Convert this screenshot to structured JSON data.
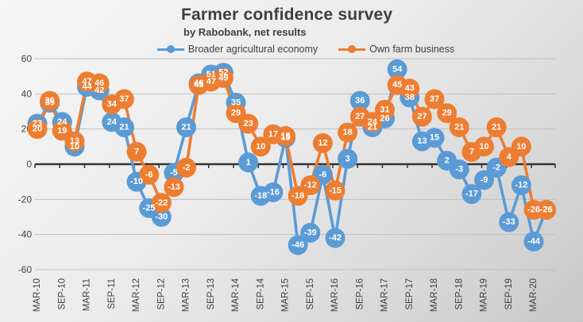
{
  "header": {
    "title": "Farmer confidence survey",
    "subtitle": "by Rabobank, net results"
  },
  "chart_data": {
    "type": "line",
    "title": "Farmer confidence survey",
    "subtitle": "by Rabobank, net results",
    "legend_position": "top",
    "grid": true,
    "ylim": [
      -60,
      60
    ],
    "yticks": [
      60,
      40,
      20,
      0,
      -20,
      -40,
      -60
    ],
    "x_labels": [
      "MAR-10",
      "SEP-10",
      "MAR-11",
      "SEP-11",
      "MAR-12",
      "SEP-12",
      "MAR-13",
      "SEP-13",
      "MAR-14",
      "SEP-14",
      "MAR-15",
      "SEP-15",
      "MAR-16",
      "SEP-16",
      "MAR-17",
      "SEP-17",
      "MAR-18",
      "SEP-18",
      "MAR-19",
      "SEP-19",
      "MAR-20"
    ],
    "points_per_axis_label": 2,
    "series": [
      {
        "name": "Broader agricultural economy",
        "color": "#5B9BD5",
        "values": [
          23,
          35,
          24,
          10,
          44,
          42,
          24,
          21,
          -10,
          -25,
          -30,
          -5,
          21,
          46,
          51,
          52,
          35,
          1,
          -18,
          -16,
          15,
          -46,
          -39,
          -6,
          -42,
          3,
          36,
          21,
          26,
          54,
          38,
          13,
          15,
          2,
          -3,
          -17,
          -9,
          -2,
          -33,
          -12,
          -44,
          -26
        ]
      },
      {
        "name": "Own farm business",
        "color": "#ED7D31",
        "values": [
          20,
          36,
          19,
          13,
          47,
          46,
          34,
          37,
          7,
          -6,
          -22,
          -13,
          -2,
          45,
          47,
          49,
          29,
          23,
          10,
          17,
          16,
          -18,
          -12,
          12,
          -15,
          18,
          27,
          24,
          31,
          45,
          43,
          27,
          37,
          29,
          21,
          7,
          10,
          21,
          4,
          10,
          -26,
          -26
        ]
      }
    ]
  }
}
